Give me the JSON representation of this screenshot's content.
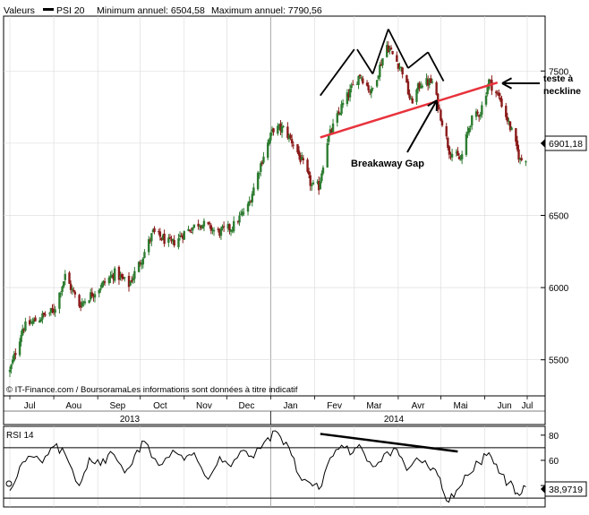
{
  "header": {
    "valeurs_label": "Valeurs",
    "series_label": "PSI 20",
    "min_label": "Minimum annuel: 6504,58",
    "max_label": "Maximum annuel: 7790,56"
  },
  "footer": {
    "copyright": "© IT-Finance.com / BoursoramaLes informations sont données à titre indicatif"
  },
  "colors": {
    "up": "#2e7d32",
    "down": "#8b1a1a",
    "neckline": "#e8323c",
    "annotation": "#000000",
    "grid_major": "#999999",
    "grid_minor": "#d9d9d9"
  },
  "chart_data": [
    {
      "type": "candlestick",
      "series": [
        {
          "name": "PSI 20"
        }
      ],
      "y_ticks": [
        5500,
        6000,
        6500,
        7000,
        7500
      ],
      "y_tick_labels": [
        "5500",
        "6000",
        "6500",
        "7000",
        "7500"
      ],
      "ylim": [
        5250,
        7880
      ],
      "x_ticks": [
        "Jul",
        "Aou",
        "Sep",
        "Oct",
        "Nov",
        "Dec",
        "Jan",
        "Fev",
        "Mar",
        "Avr",
        "Mai",
        "Jun",
        "Jul"
      ],
      "years": [
        "2013",
        "2014"
      ],
      "last_value": "6901,18",
      "anchors": [
        [
          "2013-07-01",
          5420
        ],
        [
          "2013-07-10",
          5720
        ],
        [
          "2013-07-22",
          5790
        ],
        [
          "2013-08-01",
          5840
        ],
        [
          "2013-08-09",
          6080
        ],
        [
          "2013-08-19",
          5880
        ],
        [
          "2013-09-02",
          6000
        ],
        [
          "2013-09-13",
          6100
        ],
        [
          "2013-09-23",
          6020
        ],
        [
          "2013-10-01",
          6180
        ],
        [
          "2013-10-10",
          6380
        ],
        [
          "2013-10-23",
          6300
        ],
        [
          "2013-11-01",
          6380
        ],
        [
          "2013-11-12",
          6450
        ],
        [
          "2013-11-25",
          6380
        ],
        [
          "2013-12-05",
          6420
        ],
        [
          "2013-12-16",
          6560
        ],
        [
          "2013-12-27",
          6920
        ],
        [
          "2014-01-03",
          7100
        ],
        [
          "2014-01-10",
          7100
        ],
        [
          "2014-01-17",
          7000
        ],
        [
          "2014-01-24",
          6850
        ],
        [
          "2014-01-30",
          6700
        ],
        [
          "2014-02-04",
          6700
        ],
        [
          "2014-02-10",
          7020
        ],
        [
          "2014-02-20",
          7250
        ],
        [
          "2014-03-05",
          7480
        ],
        [
          "2014-03-13",
          7350
        ],
        [
          "2014-03-24",
          7680
        ],
        [
          "2014-04-04",
          7500
        ],
        [
          "2014-04-10",
          7280
        ],
        [
          "2014-04-17",
          7420
        ],
        [
          "2014-04-25",
          7420
        ],
        [
          "2014-04-30",
          7230
        ],
        [
          "2014-05-07",
          6950
        ],
        [
          "2014-05-15",
          6880
        ],
        [
          "2014-05-22",
          7150
        ],
        [
          "2014-05-29",
          7220
        ],
        [
          "2014-06-04",
          7430
        ],
        [
          "2014-06-12",
          7300
        ],
        [
          "2014-06-20",
          7080
        ],
        [
          "2014-06-26",
          6880
        ],
        [
          "2014-06-30",
          6901
        ]
      ],
      "annotations": {
        "neckline_label_1": "teste à",
        "neckline_label_2": "neckline",
        "gap_label": "Breakaway Gap",
        "neckline": [
          [
            "2014-02-05",
            7040
          ],
          [
            "2014-06-10",
            7420
          ]
        ]
      }
    },
    {
      "type": "line",
      "title": "RSI 14",
      "y_ticks": [
        40,
        60,
        80
      ],
      "y_tick_labels": [
        "40",
        "60",
        "80"
      ],
      "ylim": [
        23,
        87
      ],
      "last_value": "38,9719",
      "reference_lines": [
        30,
        70
      ],
      "points": [
        [
          "2013-07-01",
          36
        ],
        [
          "2013-07-08",
          55
        ],
        [
          "2013-07-16",
          63
        ],
        [
          "2013-07-24",
          58
        ],
        [
          "2013-08-01",
          71
        ],
        [
          "2013-08-09",
          65
        ],
        [
          "2013-08-19",
          40
        ],
        [
          "2013-08-26",
          62
        ],
        [
          "2013-09-03",
          56
        ],
        [
          "2013-09-10",
          67
        ],
        [
          "2013-09-20",
          50
        ],
        [
          "2013-09-27",
          64
        ],
        [
          "2013-10-04",
          75
        ],
        [
          "2013-10-14",
          56
        ],
        [
          "2013-10-24",
          68
        ],
        [
          "2013-11-01",
          60
        ],
        [
          "2013-11-08",
          66
        ],
        [
          "2013-11-18",
          45
        ],
        [
          "2013-11-26",
          63
        ],
        [
          "2013-12-04",
          55
        ],
        [
          "2013-12-13",
          68
        ],
        [
          "2013-12-20",
          62
        ],
        [
          "2013-12-30",
          78
        ],
        [
          "2014-01-06",
          82
        ],
        [
          "2014-01-14",
          70
        ],
        [
          "2014-01-21",
          48
        ],
        [
          "2014-01-29",
          42
        ],
        [
          "2014-02-04",
          37
        ],
        [
          "2014-02-12",
          62
        ],
        [
          "2014-02-20",
          72
        ],
        [
          "2014-02-28",
          66
        ],
        [
          "2014-03-06",
          70
        ],
        [
          "2014-03-14",
          55
        ],
        [
          "2014-03-22",
          65
        ],
        [
          "2014-03-31",
          69
        ],
        [
          "2014-04-07",
          52
        ],
        [
          "2014-04-14",
          62
        ],
        [
          "2014-04-22",
          55
        ],
        [
          "2014-04-29",
          48
        ],
        [
          "2014-05-05",
          28
        ],
        [
          "2014-05-12",
          36
        ],
        [
          "2014-05-20",
          48
        ],
        [
          "2014-05-28",
          58
        ],
        [
          "2014-06-04",
          66
        ],
        [
          "2014-06-11",
          50
        ],
        [
          "2014-06-18",
          42
        ],
        [
          "2014-06-24",
          34
        ],
        [
          "2014-06-30",
          39
        ]
      ],
      "annotations": {
        "divergence": [
          [
            "2014-02-05",
            81
          ],
          [
            "2014-05-13",
            67
          ]
        ]
      }
    }
  ]
}
